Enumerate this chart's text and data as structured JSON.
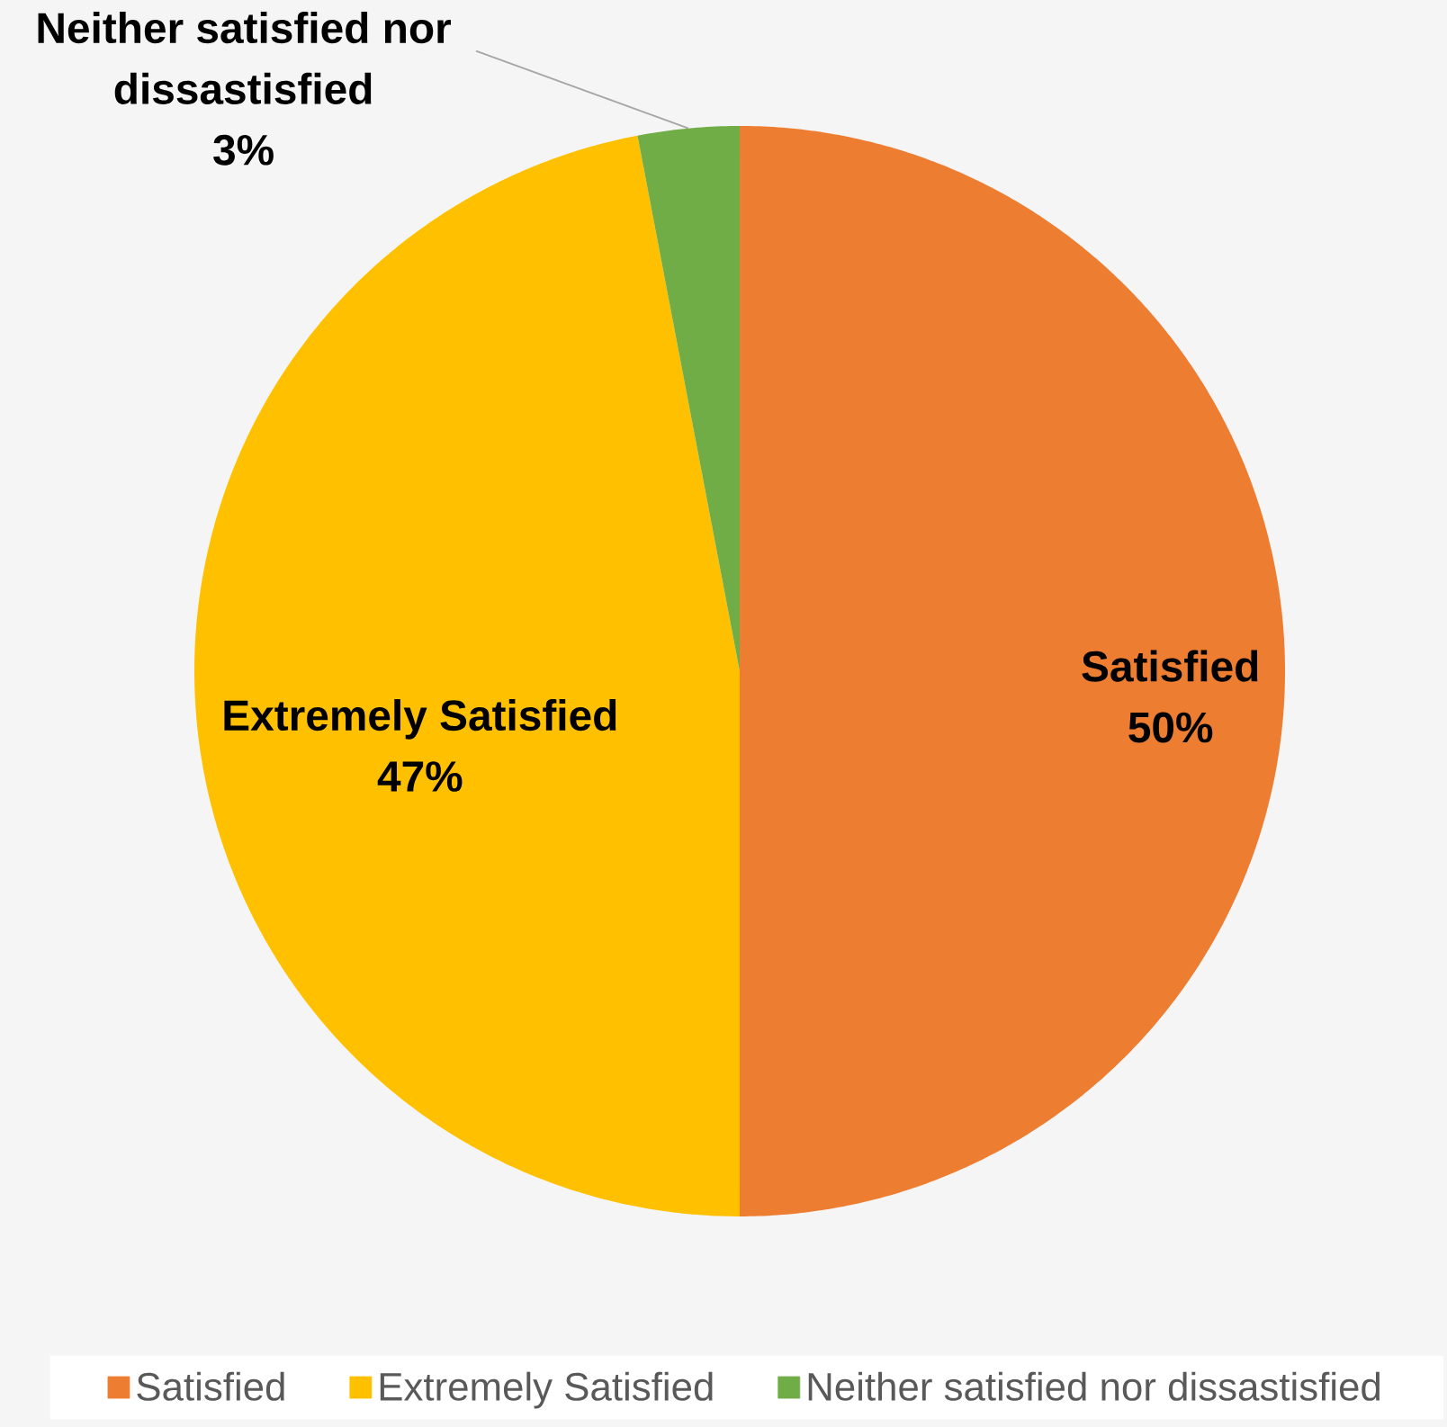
{
  "chart_data": {
    "type": "pie",
    "categories": [
      "Satisfied",
      "Extremely Satisfied",
      "Neither satisfied nor dissastisfied"
    ],
    "values": [
      50,
      47,
      3
    ],
    "value_labels": [
      "50%",
      "47%",
      "3%"
    ],
    "colors": [
      "#ed7d31",
      "#ffc000",
      "#70ad47"
    ],
    "legend": "bottom"
  }
}
